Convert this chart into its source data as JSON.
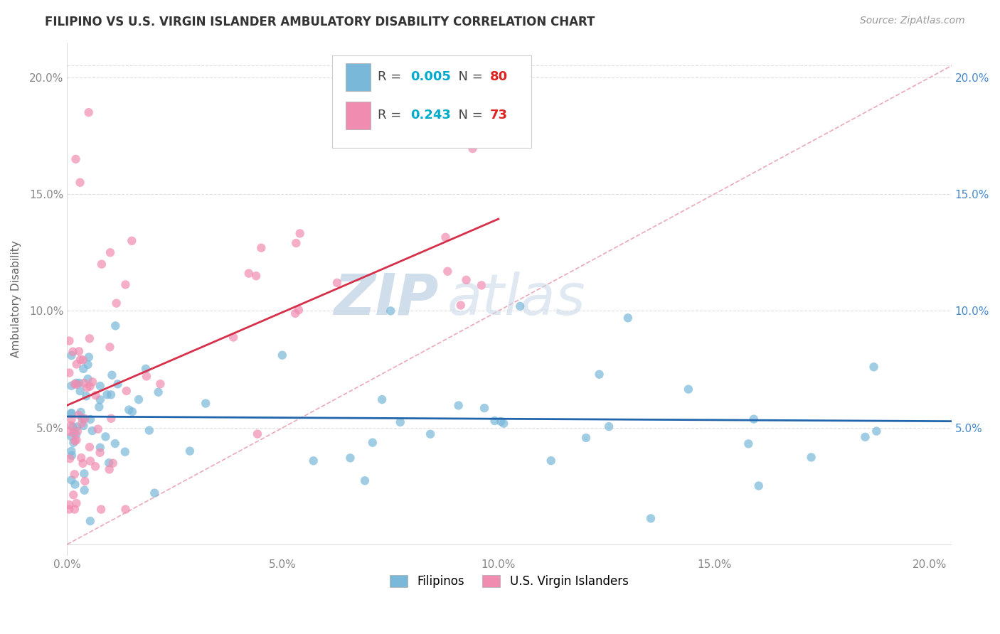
{
  "title": "FILIPINO VS U.S. VIRGIN ISLANDER AMBULATORY DISABILITY CORRELATION CHART",
  "source": "Source: ZipAtlas.com",
  "ylabel": "Ambulatory Disability",
  "xlim": [
    0.0,
    0.205
  ],
  "ylim": [
    -0.005,
    0.215
  ],
  "x_ticks": [
    0.0,
    0.05,
    0.1,
    0.15,
    0.2
  ],
  "x_tick_labels": [
    "0.0%",
    "5.0%",
    "10.0%",
    "15.0%",
    "20.0%"
  ],
  "y_ticks": [
    0.0,
    0.05,
    0.1,
    0.15,
    0.2
  ],
  "y_tick_labels_left": [
    "",
    "5.0%",
    "10.0%",
    "15.0%",
    "20.0%"
  ],
  "y_tick_labels_right": [
    "",
    "5.0%",
    "10.0%",
    "15.0%",
    "20.0%"
  ],
  "filipino_color": "#7ab8d9",
  "vi_color": "#f08cb0",
  "trend_filipino_color": "#2166ac",
  "trend_vi_color": "#d6304a",
  "diagonal_color": "#e8a0b0",
  "legend_R_color": "#00aacc",
  "legend_N_color": "#dd2222",
  "watermark_color": "#e0e8f0",
  "background_color": "#ffffff",
  "grid_color": "#e0e0e0",
  "tick_label_color_left": "#888888",
  "tick_label_color_right": "#4488cc"
}
